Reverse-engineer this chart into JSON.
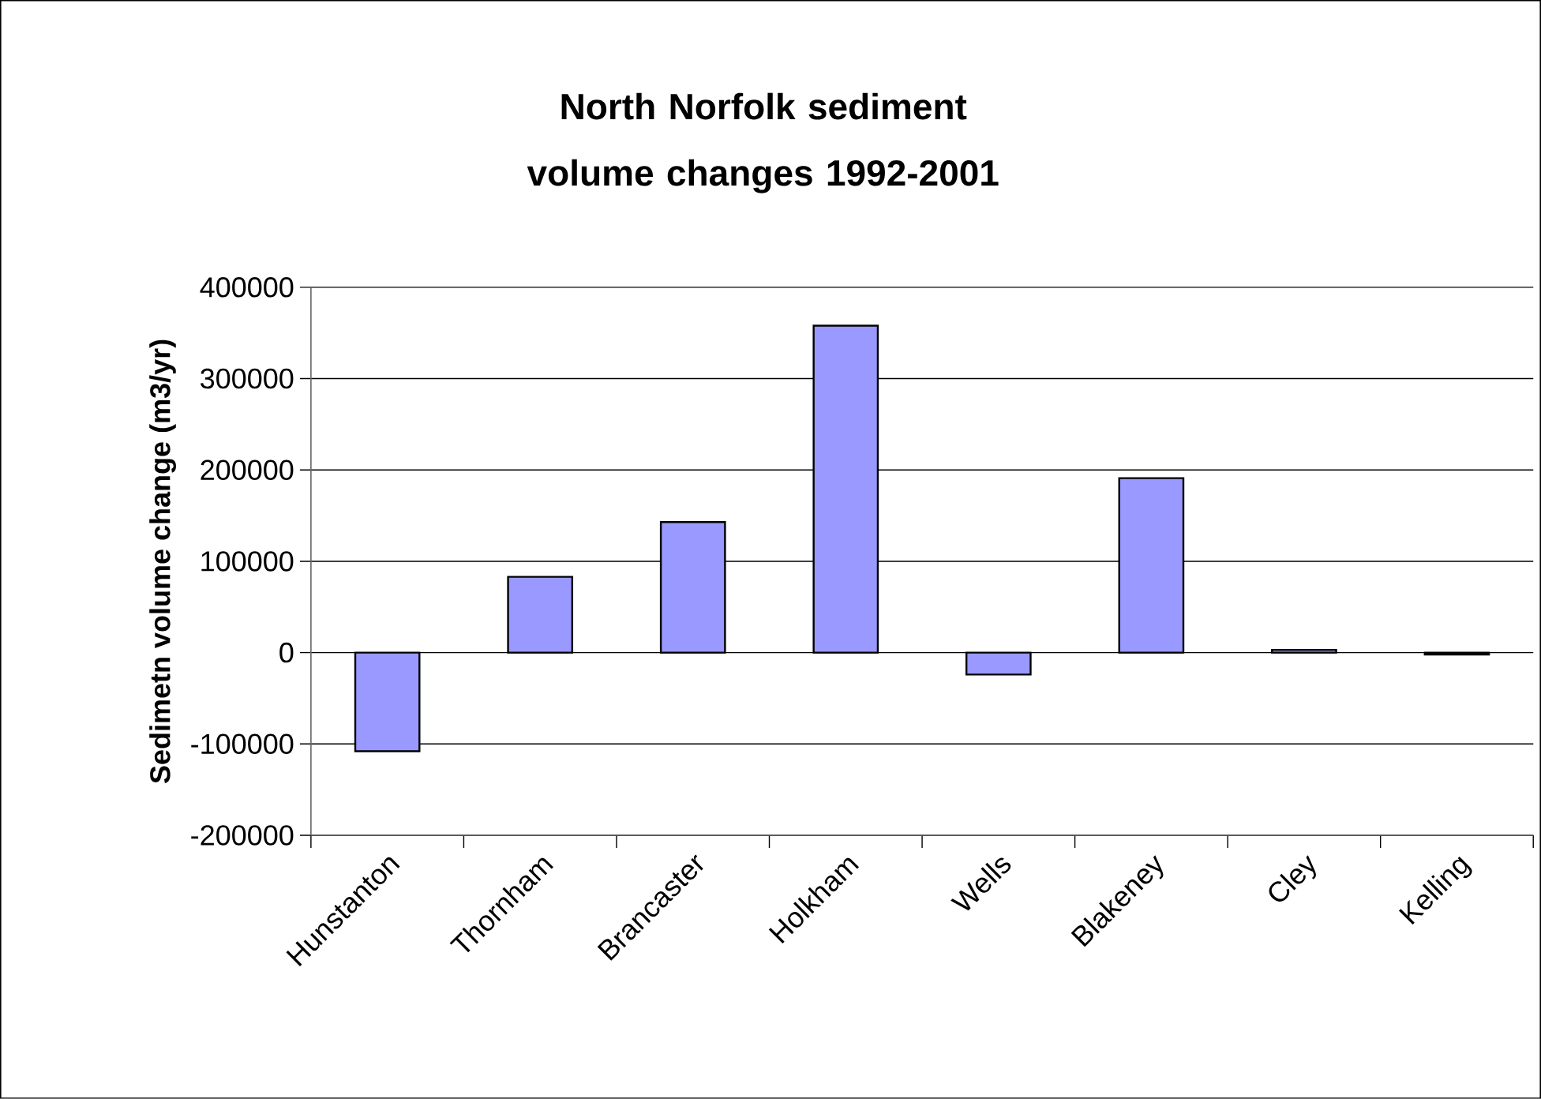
{
  "chart_data": {
    "type": "bar",
    "title": "North Norfolk sediment volume changes 1992-2001",
    "ylabel": "Sedimetn volume change (m3/yr)",
    "categories": [
      "Hunstanton",
      "Thornham",
      "Brancaster",
      "Holkham",
      "Wells",
      "Blakeney",
      "Cley",
      "Kelling"
    ],
    "values": [
      -108000,
      83000,
      143000,
      358000,
      -24000,
      191000,
      3000,
      -2000
    ],
    "color": "#9999ff",
    "ylim": [
      -200000,
      400000
    ],
    "yticks": [
      -200000,
      -100000,
      0,
      100000,
      200000,
      300000,
      400000
    ],
    "grid": "y"
  }
}
